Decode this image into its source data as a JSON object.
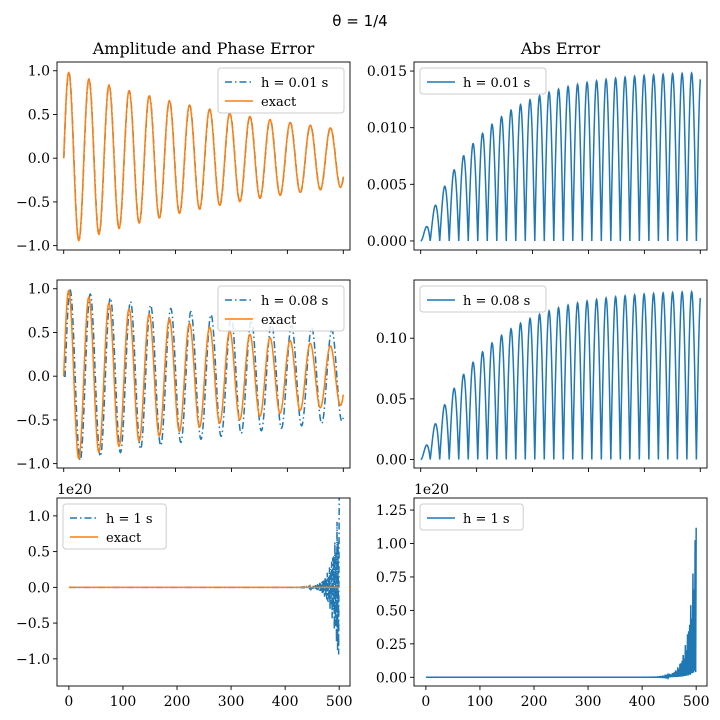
{
  "figure": {
    "suptitle": "θ = 1/4",
    "colors": {
      "approx": "#1f77b4",
      "exact": "#ff7f0e"
    }
  },
  "chart_data": [
    {
      "id": "amp1",
      "type": "line",
      "title": "Amplitude and Phase Error",
      "xlim": [
        -12,
        512
      ],
      "ylim": [
        -1.05,
        1.1
      ],
      "yticks": [
        -1.0,
        -0.5,
        0.0,
        0.5,
        1.0
      ],
      "ytick_labels": [
        "−1.0",
        "−0.5",
        "0.0",
        "0.5",
        "1.0"
      ],
      "xticks": [
        0,
        100,
        200,
        300,
        400,
        500
      ],
      "xtick_labels": [],
      "legend_loc": "upper-right",
      "series": [
        {
          "name": "h = 0.01 s",
          "style": "dashdot",
          "color": "#1f77b4",
          "model": "damped_osc",
          "period": 36,
          "decay_tau": 450,
          "amplitude": 1.0,
          "phase_lag": 0.3
        },
        {
          "name": "exact",
          "style": "solid",
          "color": "#ff7f0e",
          "model": "damped_osc",
          "period": 36,
          "decay_tau": 450,
          "amplitude": 1.0,
          "phase_lag": 0.0
        }
      ]
    },
    {
      "id": "abs1",
      "type": "line",
      "title": "Abs Error",
      "xlim": [
        -12,
        512
      ],
      "ylim": [
        -0.0008,
        0.0158
      ],
      "yticks": [
        0.0,
        0.005,
        0.01,
        0.015
      ],
      "ytick_labels": [
        "0.000",
        "0.005",
        "0.010",
        "0.015"
      ],
      "xticks": [
        0,
        100,
        200,
        300,
        400,
        500
      ],
      "xtick_labels": [],
      "legend_loc": "upper-left",
      "series": [
        {
          "name": "h = 0.01 s",
          "style": "solid",
          "color": "#1f77b4",
          "model": "abs_error",
          "half_period": 17,
          "peak": 0.015,
          "grow_tau": 110
        }
      ]
    },
    {
      "id": "amp2",
      "type": "line",
      "title": "",
      "xlim": [
        -12,
        512
      ],
      "ylim": [
        -1.05,
        1.1
      ],
      "yticks": [
        -1.0,
        -0.5,
        0.0,
        0.5,
        1.0
      ],
      "ytick_labels": [
        "−1.0",
        "−0.5",
        "0.0",
        "0.5",
        "1.0"
      ],
      "xticks": [
        0,
        100,
        200,
        300,
        400,
        500
      ],
      "xtick_labels": [],
      "legend_loc": "upper-right",
      "series": [
        {
          "name": "h = 0.08 s",
          "style": "dashdot",
          "color": "#1f77b4",
          "model": "damped_osc",
          "period": 36,
          "decay_tau": 750,
          "amplitude": 1.0,
          "phase_lag": 2.5
        },
        {
          "name": "exact",
          "style": "solid",
          "color": "#ff7f0e",
          "model": "damped_osc",
          "period": 36,
          "decay_tau": 450,
          "amplitude": 1.0,
          "phase_lag": 0.0
        }
      ]
    },
    {
      "id": "abs2",
      "type": "line",
      "title": "",
      "xlim": [
        -12,
        512
      ],
      "ylim": [
        -0.007,
        0.148
      ],
      "yticks": [
        0.0,
        0.05,
        0.1
      ],
      "ytick_labels": [
        "0.00",
        "0.05",
        "0.10"
      ],
      "xticks": [
        0,
        100,
        200,
        300,
        400,
        500
      ],
      "xtick_labels": [],
      "legend_loc": "upper-left",
      "series": [
        {
          "name": "h = 0.08 s",
          "style": "solid",
          "color": "#1f77b4",
          "model": "abs_error",
          "half_period": 17,
          "peak": 0.14,
          "grow_tau": 110
        }
      ]
    },
    {
      "id": "amp3",
      "type": "line",
      "title": "",
      "offset_label": "1e20",
      "xlim": [
        -22,
        520
      ],
      "ylim": [
        -1.38,
        1.25
      ],
      "yticks": [
        -1.0,
        -0.5,
        0.0,
        0.5,
        1.0
      ],
      "ytick_labels": [
        "−1.0",
        "−0.5",
        "0.0",
        "0.5",
        "1.0"
      ],
      "xticks": [
        0,
        100,
        200,
        300,
        400,
        500
      ],
      "xtick_labels": [
        "0",
        "100",
        "200",
        "300",
        "400",
        "500"
      ],
      "legend_loc": "upper-left",
      "series": [
        {
          "name": "h = 1 s",
          "style": "dashdot",
          "color": "#1f77b4",
          "model": "explode_osc",
          "peak": 1.28,
          "grow_tau": 12,
          "x_end": 500
        },
        {
          "name": "exact",
          "style": "solid",
          "color": "#ff7f0e",
          "model": "flat",
          "value": 0.0,
          "x_end": 500
        }
      ]
    },
    {
      "id": "abs3",
      "type": "line",
      "title": "",
      "offset_label": "1e20",
      "xlim": [
        -22,
        520
      ],
      "ylim": [
        -0.065,
        1.34
      ],
      "yticks": [
        0.0,
        0.25,
        0.5,
        0.75,
        1.0,
        1.25
      ],
      "ytick_labels": [
        "0.00",
        "0.25",
        "0.50",
        "0.75",
        "1.00",
        "1.25"
      ],
      "xticks": [
        0,
        100,
        200,
        300,
        400,
        500
      ],
      "xtick_labels": [
        "0",
        "100",
        "200",
        "300",
        "400",
        "500"
      ],
      "legend_loc": "upper-left",
      "series": [
        {
          "name": "h = 1 s",
          "style": "solid",
          "color": "#1f77b4",
          "model": "explode_abs",
          "peak": 1.28,
          "grow_tau": 12,
          "x_end": 500
        }
      ]
    }
  ]
}
